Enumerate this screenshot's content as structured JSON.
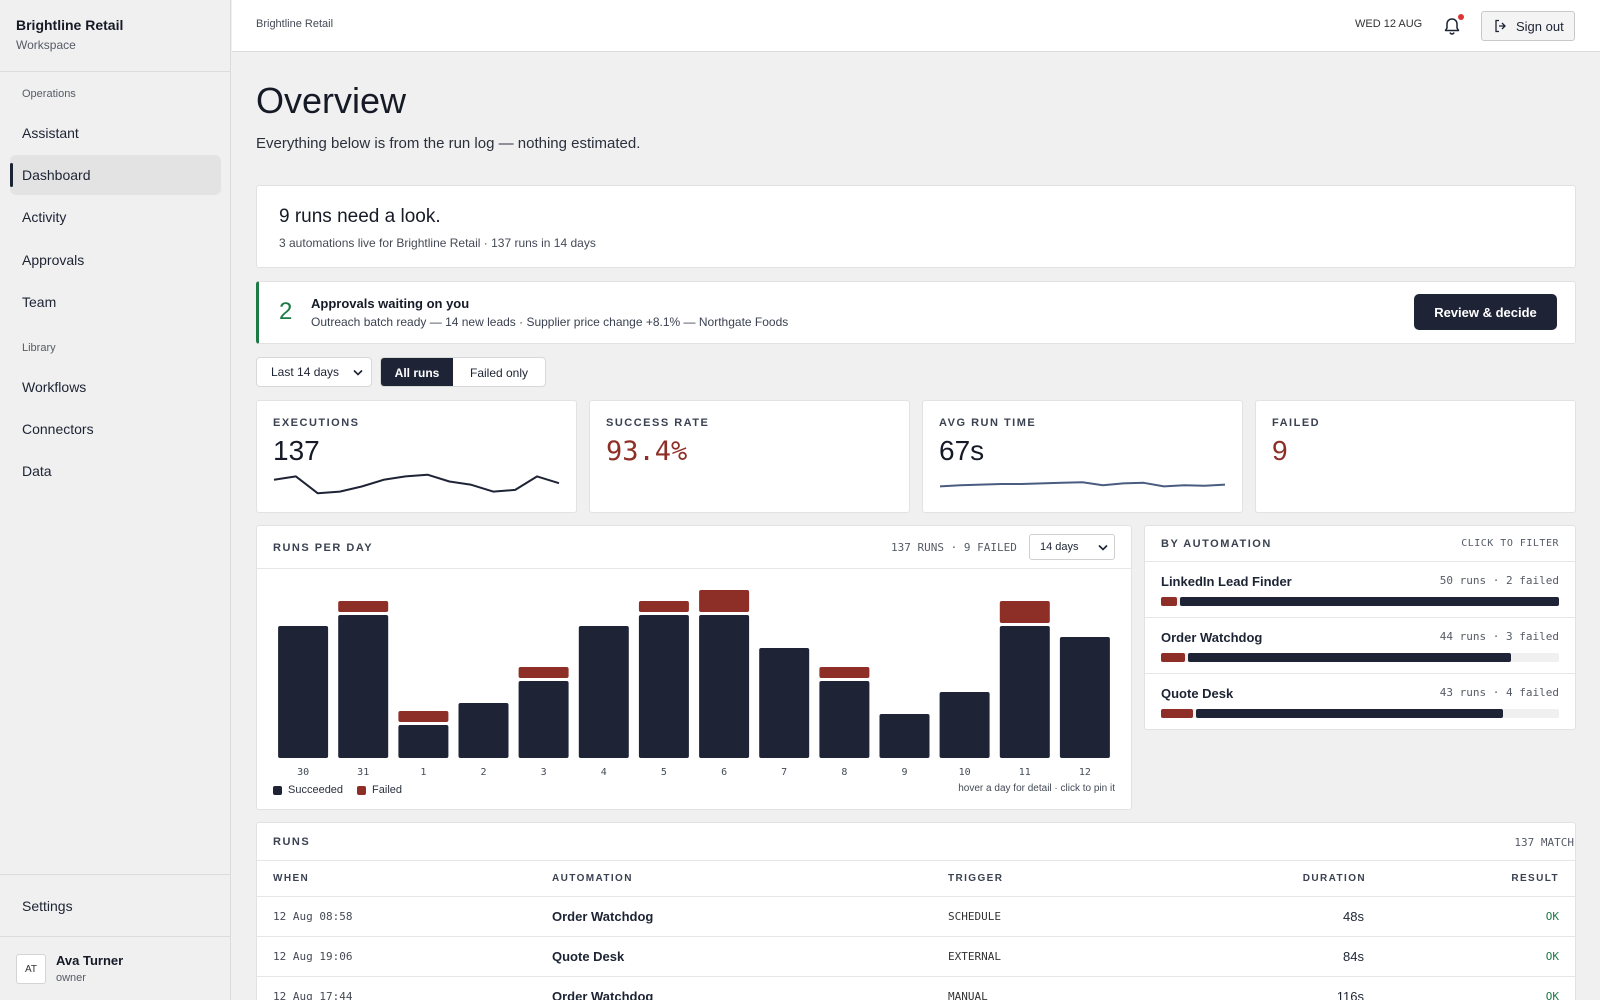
{
  "sidebar": {
    "brand": "Brightline Retail",
    "workspace": "Workspace",
    "group_operations": "Operations",
    "group_library": "Library",
    "items": [
      "Assistant",
      "Dashboard",
      "Activity",
      "Approvals",
      "Team",
      "Workflows",
      "Connectors",
      "Data"
    ],
    "settings": "Settings",
    "user": {
      "initials": "AT",
      "name": "Ava Turner",
      "role": "owner"
    }
  },
  "topbar": {
    "breadcrumb": "Brightline Retail",
    "date": "WED 12 AUG",
    "signout": "Sign out"
  },
  "page": {
    "title": "Overview",
    "subtitle": "Everything below is from the run log — nothing estimated."
  },
  "alert": {
    "headline": "9 runs need a look.",
    "detail": "3 automations live for Brightline Retail · 137 runs in 14 days"
  },
  "approvals": {
    "count": "2",
    "title": "Approvals waiting on you",
    "detail": "Outreach batch ready — 14 new leads · Supplier price change +8.1% — Northgate Foods",
    "button": "Review & decide"
  },
  "filters": {
    "range": "Last 14 days",
    "all_runs": "All runs",
    "failed_only": "Failed only"
  },
  "kpis": [
    {
      "label": "EXECUTIONS",
      "value": "137",
      "trend": [
        14,
        15,
        10,
        10.5,
        12,
        14,
        15,
        15.5,
        13.5,
        12.5,
        10.5,
        11,
        15,
        13
      ]
    },
    {
      "label": "SUCCESS RATE",
      "value": "93.4%"
    },
    {
      "label": "AVG RUN TIME",
      "value": "67s",
      "trend": [
        67,
        68,
        68.5,
        69,
        69,
        69.5,
        70,
        70.5,
        68,
        69.5,
        70,
        67,
        68,
        67.5,
        68.5
      ]
    },
    {
      "label": "FAILED",
      "value": "9"
    }
  ],
  "colors": {
    "navy": "#1e2436",
    "red": "#8e2f27",
    "green": "#1d7a45",
    "spark2": "#4a5c80"
  },
  "chart_panel": {
    "title": "RUNS PER DAY",
    "summary": "137 RUNS · 9 FAILED",
    "range": "14 days",
    "legend_succeeded": "Succeeded",
    "legend_failed": "Failed",
    "hint": "hover a day for detail · click to pin it"
  },
  "chart_data": {
    "type": "bar",
    "stacked": true,
    "categories": [
      "30",
      "31",
      "1",
      "2",
      "3",
      "4",
      "5",
      "6",
      "7",
      "8",
      "9",
      "10",
      "11",
      "12"
    ],
    "series": [
      {
        "name": "Succeeded",
        "values": [
          12,
          13,
          3,
          5,
          7,
          12,
          13,
          13,
          10,
          7,
          4,
          6,
          12,
          11
        ]
      },
      {
        "name": "Failed",
        "values": [
          0,
          1,
          1,
          0,
          1,
          0,
          1,
          2,
          0,
          1,
          0,
          0,
          2,
          0
        ]
      }
    ],
    "ylim": [
      0,
      16
    ],
    "grid": false,
    "legend": "bottom-left"
  },
  "by_automation": {
    "title": "BY AUTOMATION",
    "hint": "CLICK TO FILTER",
    "items": [
      {
        "name": "LinkedIn Lead Finder",
        "runs": 50,
        "failed": 2,
        "stat": "50 runs · 2 failed"
      },
      {
        "name": "Order Watchdog",
        "runs": 44,
        "failed": 3,
        "stat": "44 runs · 3 failed"
      },
      {
        "name": "Quote Desk",
        "runs": 43,
        "failed": 4,
        "stat": "43 runs · 4 failed"
      }
    ]
  },
  "runs": {
    "title": "RUNS",
    "match": "137 MATCH",
    "headers": [
      "WHEN",
      "AUTOMATION",
      "TRIGGER",
      "DURATION",
      "RESULT"
    ],
    "rows": [
      {
        "when": "12 Aug 08:58",
        "automation": "Order Watchdog",
        "trigger": "SCHEDULE",
        "duration": "48s",
        "result": "OK"
      },
      {
        "when": "12 Aug 19:06",
        "automation": "Quote Desk",
        "trigger": "EXTERNAL",
        "duration": "84s",
        "result": "OK"
      },
      {
        "when": "12 Aug 17:44",
        "automation": "Order Watchdog",
        "trigger": "MANUAL",
        "duration": "116s",
        "result": "OK"
      }
    ]
  }
}
